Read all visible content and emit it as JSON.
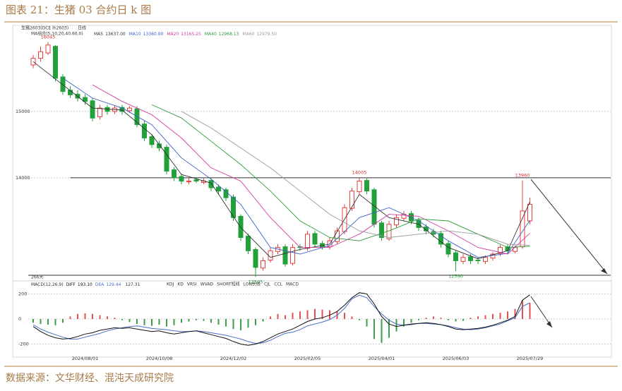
{
  "figure": {
    "title": "图表 21：生猪 03 合约日 k 图",
    "source": "数据来源：文华财经、混沌天成研究院"
  },
  "chart_data": [
    {
      "type": "candlestick",
      "symbol": "生猪2603(DCE lh2603)",
      "period": "日线",
      "legend_title": "MA组合(5,10,20,40,60,0)",
      "up_color": "#e5403c",
      "down_color": "#22a03a",
      "open": [
        15700,
        15800,
        15880,
        15980,
        15520,
        15320,
        15260,
        15210,
        15160,
        14920,
        15060,
        15000,
        15060,
        15010,
        15040,
        14810,
        14620,
        14510,
        14460,
        14120,
        14020,
        13940,
        13970,
        13930,
        13960,
        13860,
        13820,
        13710,
        13420,
        13120,
        12920,
        12640,
        12760,
        12890,
        12960,
        12710,
        12960,
        12940,
        13160,
        13010,
        12960,
        13040,
        13190,
        13540,
        13790,
        13960,
        13820,
        13320,
        13080,
        13290,
        13390,
        13460,
        13360,
        13260,
        13190,
        13160,
        13010,
        12870,
        12740,
        12810,
        12760,
        12740,
        12790,
        12860,
        12960,
        12890,
        12960,
        13350
      ],
      "high": [
        15850,
        15980,
        16045,
        16000,
        15560,
        15380,
        15320,
        15260,
        15200,
        15100,
        15100,
        15090,
        15100,
        15080,
        15080,
        14860,
        14660,
        14560,
        14500,
        14160,
        14060,
        14000,
        14010,
        13990,
        14000,
        13900,
        13850,
        13750,
        13450,
        13160,
        12950,
        12800,
        12950,
        13000,
        13000,
        13000,
        13000,
        13200,
        13200,
        13050,
        13100,
        13250,
        13600,
        13850,
        14005,
        13990,
        13850,
        13350,
        13350,
        13450,
        13500,
        13500,
        13400,
        13300,
        13230,
        13200,
        13050,
        12900,
        12850,
        12850,
        12800,
        12830,
        12880,
        12990,
        13000,
        12980,
        13960,
        13700
      ],
      "low": [
        15650,
        15750,
        15850,
        15450,
        15250,
        15200,
        15150,
        15100,
        14850,
        14880,
        14950,
        14960,
        14950,
        14980,
        14760,
        14550,
        14450,
        14400,
        14050,
        13950,
        13900,
        13900,
        13920,
        13900,
        13800,
        13750,
        13650,
        13350,
        13050,
        12850,
        12505,
        12600,
        12720,
        12850,
        12660,
        12680,
        12900,
        12900,
        12960,
        12920,
        12920,
        13000,
        13150,
        13500,
        13750,
        13750,
        13250,
        13050,
        13050,
        13250,
        13350,
        13300,
        13200,
        13150,
        13100,
        12950,
        12800,
        12590,
        12700,
        12700,
        12700,
        12700,
        12750,
        12820,
        12860,
        12860,
        12930,
        13300
      ],
      "close": [
        15800,
        15900,
        16000,
        15500,
        15300,
        15250,
        15200,
        15150,
        14900,
        15050,
        15000,
        15050,
        15000,
        15050,
        14800,
        14600,
        14500,
        14450,
        14100,
        14000,
        13950,
        13950,
        13950,
        13950,
        13850,
        13800,
        13700,
        13400,
        13100,
        12900,
        12650,
        12750,
        12900,
        12950,
        12700,
        12950,
        12950,
        13150,
        13000,
        12950,
        13050,
        13200,
        13550,
        13800,
        13950,
        13800,
        13300,
        13100,
        13300,
        13400,
        13450,
        13350,
        13250,
        13200,
        13150,
        13000,
        12850,
        12750,
        12800,
        12750,
        12750,
        12800,
        12850,
        12950,
        12900,
        12950,
        13500,
        13600
      ],
      "ma": [
        {
          "name": "MA5",
          "last_label": "13637.00",
          "color": "#333333",
          "x": [
            0,
            4,
            8,
            12,
            16,
            20,
            24,
            28,
            32,
            36,
            40,
            44,
            48,
            52,
            56,
            60,
            64,
            67
          ],
          "values": [
            15750,
            15400,
            15050,
            15020,
            14650,
            14050,
            13920,
            13250,
            12800,
            12920,
            13000,
            13750,
            13400,
            13300,
            12950,
            12780,
            12900,
            13637
          ]
        },
        {
          "name": "MA10",
          "last_label": "13360.00",
          "color": "#3b62c9",
          "x": [
            0,
            4,
            8,
            12,
            16,
            20,
            24,
            28,
            32,
            36,
            40,
            44,
            48,
            52,
            56,
            60,
            64,
            67
          ],
          "values": [
            null,
            15500,
            15200,
            15050,
            14800,
            14300,
            13980,
            13600,
            12950,
            12850,
            12980,
            13400,
            13550,
            13350,
            13050,
            12800,
            12860,
            13360
          ]
        },
        {
          "name": "MA20",
          "last_label": "13165.25",
          "color": "#d23aa6",
          "x": [
            0,
            4,
            8,
            12,
            16,
            20,
            24,
            28,
            32,
            36,
            40,
            44,
            48,
            52,
            56,
            60,
            64,
            67
          ],
          "values": [
            null,
            null,
            15400,
            15150,
            14950,
            14600,
            14150,
            13950,
            13400,
            12950,
            12950,
            13150,
            13450,
            13420,
            13200,
            12950,
            12850,
            13165.25
          ]
        },
        {
          "name": "MA40",
          "last_label": "12968.13",
          "color": "#2e9a3a",
          "x": [
            0,
            4,
            8,
            12,
            16,
            20,
            24,
            28,
            32,
            36,
            40,
            44,
            48,
            52,
            56,
            60,
            64,
            67
          ],
          "values": [
            null,
            null,
            null,
            null,
            15100,
            14900,
            14550,
            14200,
            13800,
            13350,
            13100,
            13050,
            13200,
            13380,
            13350,
            13150,
            12950,
            12968.13
          ]
        },
        {
          "name": "MA60",
          "last_label": "12979.50",
          "color": "#9a9a9a",
          "x": [
            0,
            4,
            8,
            12,
            16,
            20,
            24,
            28,
            32,
            36,
            40,
            44,
            48,
            52,
            56,
            60,
            64,
            67
          ],
          "values": [
            null,
            null,
            null,
            null,
            null,
            15000,
            14750,
            14450,
            14150,
            13800,
            13450,
            13200,
            13100,
            13150,
            13200,
            13150,
            13000,
            12979.5
          ]
        }
      ],
      "ylim": [
        12510,
        16200
      ],
      "yticks": [
        14000,
        15000
      ],
      "grid": true,
      "hlines": [
        14000
      ],
      "range_label": "266天",
      "annotations": [
        {
          "text": "16045",
          "x": 2,
          "y": 16045,
          "position": "above",
          "color": "#d0302c"
        },
        {
          "text": "14005",
          "x": 44,
          "y": 14005,
          "position": "above",
          "color": "#d0302c"
        },
        {
          "text": "13960",
          "x": 66,
          "y": 13960,
          "position": "above",
          "color": "#d0302c"
        },
        {
          "text": "12505",
          "x": 30,
          "y": 12505,
          "position": "below",
          "color": "#22a03a"
        },
        {
          "text": "12590",
          "x": 57,
          "y": 12590,
          "position": "below",
          "color": "#22a03a"
        }
      ]
    },
    {
      "type": "macd",
      "title": "MACD(12,26,9)",
      "indicators": [
        "KDJ",
        "KD",
        "VRSI",
        "WVAD",
        "SHORT短线",
        "LON长线",
        "CJL",
        "CCL",
        "MACD"
      ],
      "diff": {
        "name": "DIFF",
        "last_label": "193.10",
        "color": "#111111",
        "values": [
          -60,
          -100,
          -130,
          -150,
          -160,
          -155,
          -140,
          -120,
          -110,
          -90,
          -80,
          -70,
          -75,
          -70,
          -80,
          -90,
          -100,
          -95,
          -110,
          -120,
          -110,
          -100,
          -95,
          -110,
          -125,
          -140,
          -155,
          -180,
          -200,
          -210,
          -200,
          -180,
          -150,
          -120,
          -100,
          -80,
          -50,
          -20,
          0,
          10,
          30,
          60,
          110,
          170,
          210,
          200,
          120,
          20,
          -40,
          -60,
          -50,
          -40,
          -35,
          -30,
          -35,
          -45,
          -60,
          -80,
          -85,
          -80,
          -75,
          -65,
          -50,
          -30,
          -10,
          20,
          150,
          193.1
        ]
      },
      "dea": {
        "name": "DEA",
        "last_label": "129.44",
        "color": "#4a6fc8",
        "values": [
          -45,
          -80,
          -105,
          -125,
          -145,
          -160,
          -160,
          -145,
          -130,
          -115,
          -95,
          -80,
          -70,
          -60,
          -55,
          -65,
          -75,
          -80,
          -85,
          -95,
          -100,
          -100,
          -95,
          -100,
          -110,
          -120,
          -130,
          -145,
          -160,
          -180,
          -195,
          -190,
          -170,
          -140,
          -115,
          -105,
          -85,
          -55,
          -40,
          -25,
          -5,
          30,
          85,
          160,
          190,
          170,
          100,
          40,
          -10,
          -40,
          -50,
          -45,
          -35,
          -35,
          -40,
          -45,
          -55,
          -70,
          -80,
          -85,
          -80,
          -70,
          -55,
          -40,
          -15,
          10,
          100,
          129.44
        ]
      },
      "histogram": {
        "last_label": "127.31",
        "up_color": "#e05050",
        "down_color": "#3aa04a",
        "values": [
          -30,
          -40,
          -45,
          -50,
          -30,
          20,
          40,
          45,
          40,
          30,
          20,
          10,
          -10,
          -25,
          -40,
          -50,
          -55,
          -45,
          -60,
          -50,
          -30,
          -20,
          -10,
          -15,
          -30,
          -45,
          -60,
          -80,
          -90,
          -70,
          -50,
          -20,
          20,
          40,
          30,
          50,
          60,
          70,
          80,
          75,
          70,
          60,
          50,
          20,
          -10,
          -60,
          -160,
          -190,
          -150,
          -100,
          -60,
          -30,
          -10,
          10,
          20,
          10,
          -10,
          -20,
          -15,
          10,
          20,
          30,
          40,
          50,
          60,
          80,
          150,
          127.31
        ]
      },
      "categories": [
        null,
        null,
        null,
        null,
        null,
        null,
        null,
        "2024/08/01",
        null,
        null,
        null,
        null,
        null,
        null,
        null,
        null,
        null,
        "2024/10/08",
        null,
        null,
        null,
        null,
        null,
        null,
        null,
        null,
        null,
        "2024/12/02",
        null,
        null,
        null,
        null,
        null,
        null,
        null,
        null,
        null,
        "2025/02/05",
        null,
        null,
        null,
        null,
        null,
        null,
        null,
        null,
        null,
        "2025/04/01",
        null,
        null,
        null,
        null,
        null,
        null,
        null,
        null,
        null,
        "2025/06/03",
        null,
        null,
        null,
        null,
        null,
        null,
        null,
        null,
        null,
        "2025/07/29"
      ],
      "ylim": [
        -231,
        270
      ],
      "yticks": [
        -200,
        0,
        200
      ],
      "grid": true
    }
  ]
}
